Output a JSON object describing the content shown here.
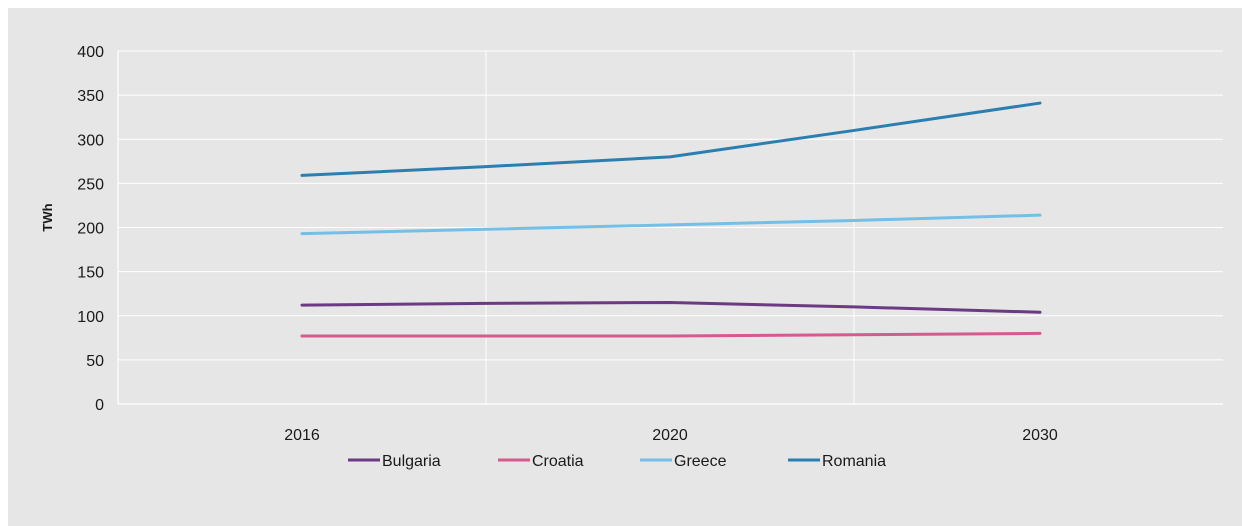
{
  "chart_data": {
    "type": "line",
    "title": "",
    "xlabel": "",
    "ylabel": "TWh",
    "categories": [
      "2016",
      "2020",
      "2030"
    ],
    "ylim": [
      0,
      400
    ],
    "yticks": [
      0,
      50,
      100,
      150,
      200,
      250,
      300,
      350,
      400
    ],
    "grid": true,
    "legend": "bottom",
    "series": [
      {
        "name": "Bulgaria",
        "color": "#6b3a82",
        "values": [
          112,
          115,
          104
        ],
        "mid": [
          114,
          110
        ]
      },
      {
        "name": "Croatia",
        "color": "#d45a8f",
        "values": [
          77,
          77,
          80
        ],
        "mid": [
          77,
          78.5
        ]
      },
      {
        "name": "Greece",
        "color": "#74bfe8",
        "values": [
          193,
          203,
          214
        ],
        "mid": [
          198,
          208
        ]
      },
      {
        "name": "Romania",
        "color": "#2b7fb0",
        "values": [
          259,
          280,
          341
        ],
        "mid": [
          269,
          310
        ]
      }
    ]
  }
}
